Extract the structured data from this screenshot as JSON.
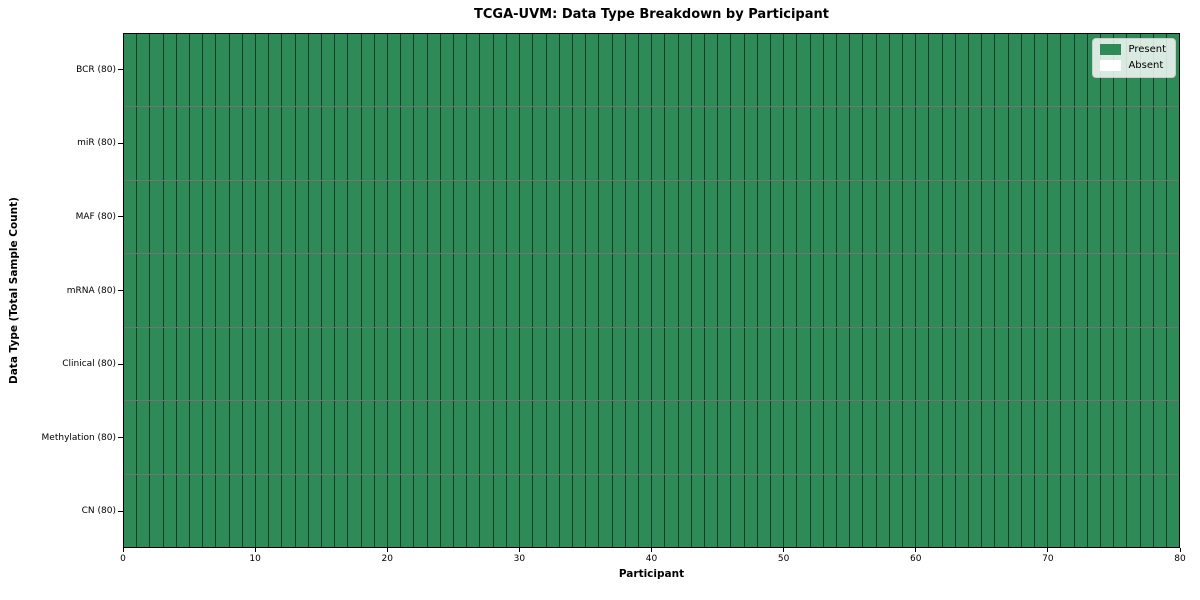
{
  "chart_data": {
    "type": "heatmap",
    "title": "TCGA-UVM: Data Type Breakdown by Participant",
    "xlabel": "Participant",
    "ylabel": "Data Type (Total Sample Count)",
    "xlim": [
      0,
      80
    ],
    "x_ticks": [
      0,
      10,
      20,
      30,
      40,
      50,
      60,
      70,
      80
    ],
    "n_participants": 80,
    "rows": [
      {
        "label": "BCR (80)",
        "data_type": "BCR",
        "total": 80,
        "present": 80,
        "absent": 0
      },
      {
        "label": "miR (80)",
        "data_type": "miR",
        "total": 80,
        "present": 80,
        "absent": 0
      },
      {
        "label": "MAF (80)",
        "data_type": "MAF",
        "total": 80,
        "present": 80,
        "absent": 0
      },
      {
        "label": "mRNA (80)",
        "data_type": "mRNA",
        "total": 80,
        "present": 80,
        "absent": 0
      },
      {
        "label": "Clinical (80)",
        "data_type": "Clinical",
        "total": 80,
        "present": 80,
        "absent": 0
      },
      {
        "label": "Methylation (80)",
        "data_type": "Methylation",
        "total": 80,
        "present": 80,
        "absent": 0
      },
      {
        "label": "CN (80)",
        "data_type": "CN",
        "total": 80,
        "present": 80,
        "absent": 0
      }
    ],
    "legend": [
      {
        "label": "Present",
        "color": "#2E8B57"
      },
      {
        "label": "Absent",
        "color": "#FFFFFF"
      }
    ],
    "legend_position": "upper right",
    "grid": "cell-borders"
  },
  "colors": {
    "present": "#2E8B57",
    "absent": "#FFFFFF",
    "text": "#000000"
  }
}
